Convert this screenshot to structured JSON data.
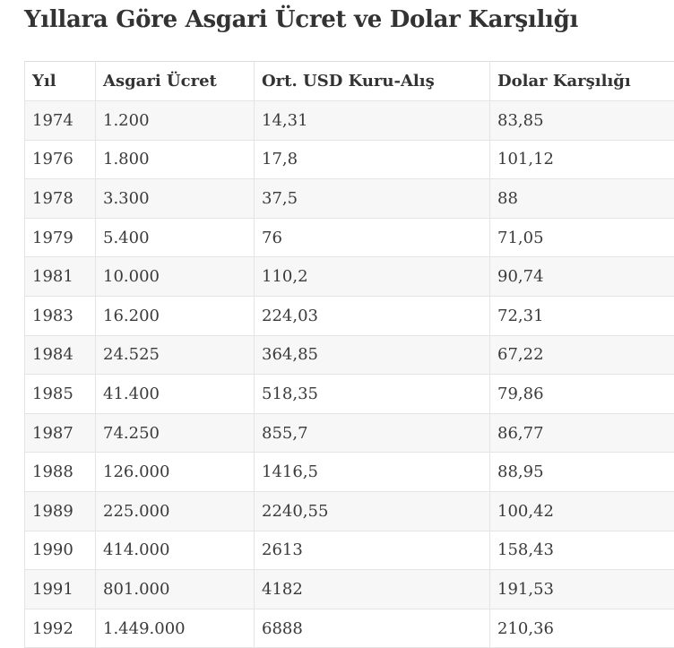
{
  "page": {
    "title": "Yıllara Göre Asgari Ücret ve Dolar Karşılığı"
  },
  "table": {
    "headers": [
      "Yıl",
      "Asgari Ücret",
      "Ort. USD Kuru-Alış",
      "Dolar Karşılığı"
    ],
    "rows": [
      [
        "1974",
        "1.200",
        "14,31",
        "83,85"
      ],
      [
        "1976",
        "1.800",
        "17,8",
        "101,12"
      ],
      [
        "1978",
        "3.300",
        "37,5",
        "88"
      ],
      [
        "1979",
        "5.400",
        "76",
        "71,05"
      ],
      [
        "1981",
        "10.000",
        "110,2",
        "90,74"
      ],
      [
        "1983",
        "16.200",
        "224,03",
        "72,31"
      ],
      [
        "1984",
        "24.525",
        "364,85",
        "67,22"
      ],
      [
        "1985",
        "41.400",
        "518,35",
        "79,86"
      ],
      [
        "1987",
        "74.250",
        "855,7",
        "86,77"
      ],
      [
        "1988",
        "126.000",
        "1416,5",
        "88,95"
      ],
      [
        "1989",
        "225.000",
        "2240,55",
        "100,42"
      ],
      [
        "1990",
        "414.000",
        "2613",
        "158,43"
      ],
      [
        "1991",
        "801.000",
        "4182",
        "191,53"
      ],
      [
        "1992",
        "1.449.000",
        "6888",
        "210,36"
      ]
    ]
  }
}
